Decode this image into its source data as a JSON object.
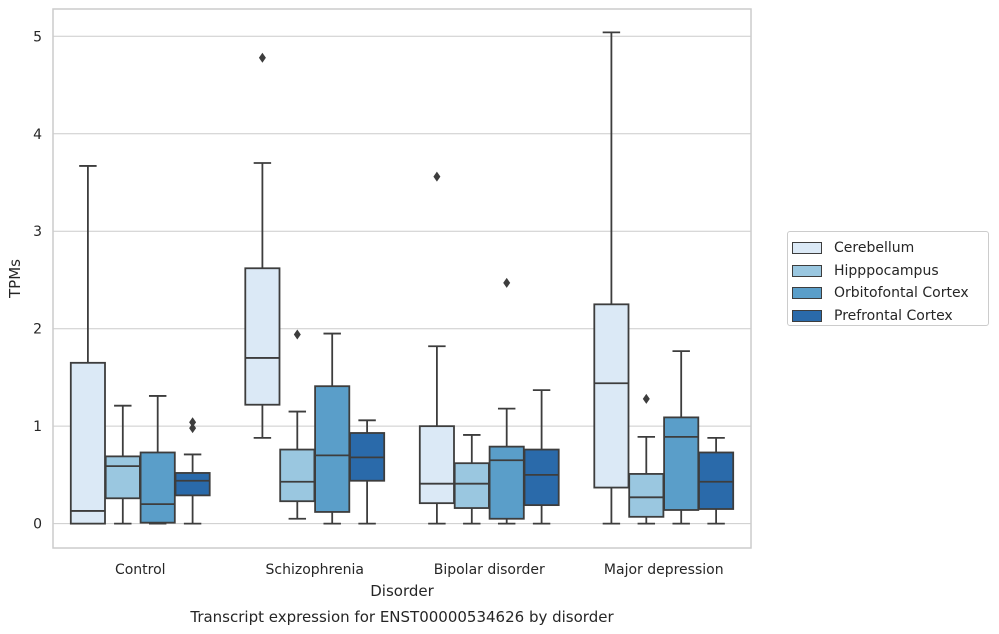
{
  "chart_data": {
    "type": "box",
    "title": "Transcript expression for ENST00000534626 by disorder",
    "xlabel": "Disorder",
    "ylabel": "TPMs",
    "ylim": [
      -0.25,
      5.28
    ],
    "yticks": [
      0,
      1,
      2,
      3,
      4,
      5
    ],
    "grid": "y",
    "legend_position": "right",
    "categories": [
      "Control",
      "Schizophrenia",
      "Bipolar disorder",
      "Major depression"
    ],
    "series": [
      {
        "name": "Cerebellum",
        "color": "#dbe9f6",
        "boxes": [
          {
            "whisker_low": 0.0,
            "q1": 0.0,
            "median": 0.13,
            "q3": 1.65,
            "whisker_high": 3.67,
            "outliers": []
          },
          {
            "whisker_low": 0.88,
            "q1": 1.22,
            "median": 1.7,
            "q3": 2.62,
            "whisker_high": 3.7,
            "outliers": [
              4.78
            ]
          },
          {
            "whisker_low": 0.0,
            "q1": 0.21,
            "median": 0.41,
            "q3": 1.0,
            "whisker_high": 1.82,
            "outliers": [
              3.56
            ]
          },
          {
            "whisker_low": 0.0,
            "q1": 0.37,
            "median": 1.44,
            "q3": 2.25,
            "whisker_high": 5.04,
            "outliers": []
          }
        ]
      },
      {
        "name": "Hipppocampus",
        "color": "#9ac7e0",
        "boxes": [
          {
            "whisker_low": 0.0,
            "q1": 0.26,
            "median": 0.59,
            "q3": 0.69,
            "whisker_high": 1.21,
            "outliers": []
          },
          {
            "whisker_low": 0.05,
            "q1": 0.23,
            "median": 0.43,
            "q3": 0.76,
            "whisker_high": 1.15,
            "outliers": [
              1.94
            ]
          },
          {
            "whisker_low": 0.0,
            "q1": 0.16,
            "median": 0.41,
            "q3": 0.62,
            "whisker_high": 0.91,
            "outliers": []
          },
          {
            "whisker_low": 0.0,
            "q1": 0.07,
            "median": 0.27,
            "q3": 0.51,
            "whisker_high": 0.89,
            "outliers": [
              1.28
            ]
          }
        ]
      },
      {
        "name": "Orbitofontal Cortex",
        "color": "#5a9ec9",
        "boxes": [
          {
            "whisker_low": 0.0,
            "q1": 0.01,
            "median": 0.2,
            "q3": 0.73,
            "whisker_high": 1.31,
            "outliers": []
          },
          {
            "whisker_low": 0.0,
            "q1": 0.12,
            "median": 0.7,
            "q3": 1.41,
            "whisker_high": 1.95,
            "outliers": []
          },
          {
            "whisker_low": 0.0,
            "q1": 0.05,
            "median": 0.65,
            "q3": 0.79,
            "whisker_high": 1.18,
            "outliers": [
              2.47
            ]
          },
          {
            "whisker_low": 0.0,
            "q1": 0.14,
            "median": 0.89,
            "q3": 1.09,
            "whisker_high": 1.77,
            "outliers": []
          }
        ]
      },
      {
        "name": "Prefrontal Cortex",
        "color": "#2a6aaa",
        "boxes": [
          {
            "whisker_low": 0.0,
            "q1": 0.29,
            "median": 0.44,
            "q3": 0.52,
            "whisker_high": 0.71,
            "outliers": [
              0.98,
              1.04
            ]
          },
          {
            "whisker_low": 0.0,
            "q1": 0.44,
            "median": 0.68,
            "q3": 0.93,
            "whisker_high": 1.06,
            "outliers": []
          },
          {
            "whisker_low": 0.0,
            "q1": 0.19,
            "median": 0.5,
            "q3": 0.76,
            "whisker_high": 1.37,
            "outliers": []
          },
          {
            "whisker_low": 0.0,
            "q1": 0.15,
            "median": 0.43,
            "q3": 0.73,
            "whisker_high": 0.88,
            "outliers": []
          }
        ]
      }
    ]
  }
}
